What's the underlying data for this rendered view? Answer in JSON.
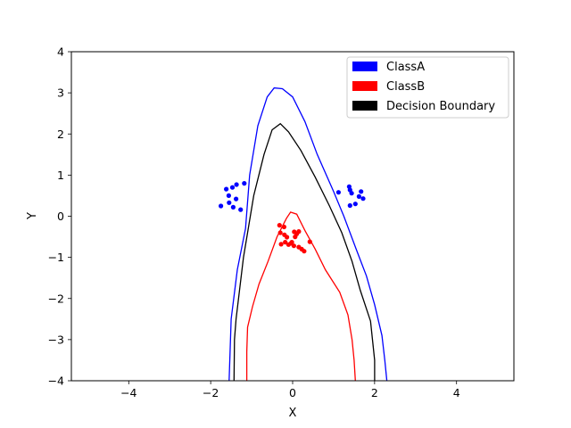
{
  "chart_data": {
    "type": "scatter",
    "title": "",
    "xlabel": "X",
    "ylabel": "Y",
    "xlim": [
      -5.4,
      5.4
    ],
    "ylim": [
      -4,
      4
    ],
    "xticks": [
      -4,
      -2,
      0,
      2,
      4
    ],
    "yticks": [
      -4,
      -3,
      -2,
      -1,
      0,
      1,
      2,
      3,
      4
    ],
    "grid": false,
    "legend_placement": "top-right",
    "legend": [
      {
        "label": "ClassA",
        "color": "#0000ff"
      },
      {
        "label": "ClassB",
        "color": "#ff0000"
      },
      {
        "label": "Decision Boundary",
        "color": "#000000"
      }
    ],
    "series": [
      {
        "name": "ClassA",
        "kind": "points",
        "color": "#0000ff",
        "points": [
          [
            -1.75,
            0.25
          ],
          [
            -1.62,
            0.66
          ],
          [
            -1.56,
            0.5
          ],
          [
            -1.55,
            0.33
          ],
          [
            -1.47,
            0.7
          ],
          [
            -1.45,
            0.22
          ],
          [
            -1.38,
            0.42
          ],
          [
            -1.37,
            0.77
          ],
          [
            -1.27,
            0.16
          ],
          [
            -1.18,
            0.8
          ],
          [
            1.12,
            0.58
          ],
          [
            1.38,
            0.72
          ],
          [
            1.4,
            0.64
          ],
          [
            1.44,
            0.56
          ],
          [
            1.4,
            0.26
          ],
          [
            1.53,
            0.3
          ],
          [
            1.62,
            0.48
          ],
          [
            1.67,
            0.6
          ],
          [
            1.72,
            0.43
          ]
        ]
      },
      {
        "name": "ClassB",
        "kind": "points",
        "color": "#ff0000",
        "points": [
          [
            -0.32,
            -0.22
          ],
          [
            -0.3,
            -0.4
          ],
          [
            -0.28,
            -0.68
          ],
          [
            -0.21,
            -0.26
          ],
          [
            -0.2,
            -0.45
          ],
          [
            -0.18,
            -0.63
          ],
          [
            -0.14,
            -0.51
          ],
          [
            -0.1,
            -0.69
          ],
          [
            -0.04,
            -0.66
          ],
          [
            -0.02,
            -0.63
          ],
          [
            0.03,
            -0.72
          ],
          [
            0.04,
            -0.38
          ],
          [
            0.06,
            -0.5
          ],
          [
            0.1,
            -0.43
          ],
          [
            0.15,
            -0.37
          ],
          [
            0.15,
            -0.75
          ],
          [
            0.22,
            -0.8
          ],
          [
            0.28,
            -0.85
          ],
          [
            0.42,
            -0.62
          ]
        ]
      },
      {
        "name": "ClassA contour",
        "kind": "line",
        "color": "#0000ff",
        "points": [
          [
            -1.55,
            -4.0
          ],
          [
            -1.5,
            -2.5
          ],
          [
            -1.35,
            -1.3
          ],
          [
            -1.15,
            -0.3
          ],
          [
            -1.05,
            1.0
          ],
          [
            -0.85,
            2.2
          ],
          [
            -0.62,
            2.9
          ],
          [
            -0.45,
            3.12
          ],
          [
            -0.25,
            3.1
          ],
          [
            0.0,
            2.9
          ],
          [
            0.3,
            2.3
          ],
          [
            0.6,
            1.5
          ],
          [
            1.0,
            0.6
          ],
          [
            1.25,
            0.0
          ],
          [
            1.55,
            -0.8
          ],
          [
            1.8,
            -1.45
          ],
          [
            2.0,
            -2.15
          ],
          [
            2.18,
            -2.9
          ],
          [
            2.25,
            -3.5
          ],
          [
            2.3,
            -4.0
          ]
        ]
      },
      {
        "name": "Decision Boundary contour",
        "kind": "line",
        "color": "#000000",
        "points": [
          [
            -1.43,
            -4.0
          ],
          [
            -1.42,
            -3.0
          ],
          [
            -1.38,
            -2.5
          ],
          [
            -1.2,
            -1.0
          ],
          [
            -0.95,
            0.5
          ],
          [
            -0.7,
            1.5
          ],
          [
            -0.5,
            2.1
          ],
          [
            -0.3,
            2.25
          ],
          [
            -0.1,
            2.05
          ],
          [
            0.2,
            1.6
          ],
          [
            0.55,
            0.95
          ],
          [
            0.9,
            0.25
          ],
          [
            1.2,
            -0.4
          ],
          [
            1.45,
            -1.1
          ],
          [
            1.65,
            -1.8
          ],
          [
            1.9,
            -2.55
          ],
          [
            2.0,
            -3.5
          ],
          [
            2.0,
            -4.0
          ]
        ]
      },
      {
        "name": "ClassB contour",
        "kind": "line",
        "color": "#ff0000",
        "points": [
          [
            -1.12,
            -4.0
          ],
          [
            -1.12,
            -3.3
          ],
          [
            -1.1,
            -2.7
          ],
          [
            -0.98,
            -2.2
          ],
          [
            -0.82,
            -1.65
          ],
          [
            -0.6,
            -1.1
          ],
          [
            -0.38,
            -0.5
          ],
          [
            -0.15,
            -0.05
          ],
          [
            -0.05,
            0.1
          ],
          [
            0.1,
            0.05
          ],
          [
            0.3,
            -0.35
          ],
          [
            0.55,
            -0.8
          ],
          [
            0.8,
            -1.3
          ],
          [
            1.15,
            -1.85
          ],
          [
            1.35,
            -2.4
          ],
          [
            1.45,
            -3.0
          ],
          [
            1.5,
            -3.5
          ],
          [
            1.53,
            -4.0
          ]
        ]
      }
    ]
  }
}
